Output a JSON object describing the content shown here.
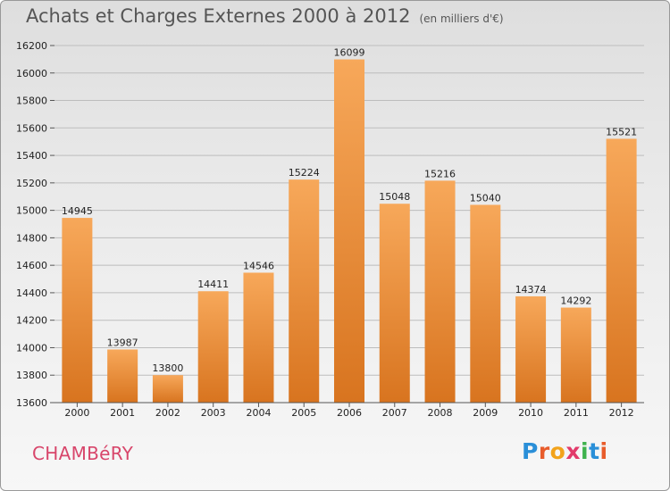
{
  "header": {
    "title": "Achats et Charges Externes 2000 à 2012",
    "unit": "(en milliers d'€)"
  },
  "footer": {
    "city": "CHAMBéRY",
    "logo_letters": [
      "P",
      "r",
      "o",
      "x",
      "i",
      "t",
      "i"
    ],
    "logo_colors": [
      "#2a8fd8",
      "#e85c2b",
      "#f2a31b",
      "#e23a6b",
      "#3fb24d",
      "#2a8fd8",
      "#e85c2b"
    ]
  },
  "colors": {
    "bar_light": "#f7a85a",
    "bar_dark": "#d8741f",
    "grid": "#bdbdbd",
    "axis": "#555555"
  },
  "chart_data": {
    "type": "bar",
    "title": "Achats et Charges Externes 2000 à 2012",
    "categories": [
      "2000",
      "2001",
      "2002",
      "2003",
      "2004",
      "2005",
      "2006",
      "2007",
      "2008",
      "2009",
      "2010",
      "2011",
      "2012"
    ],
    "values": [
      14945,
      13987,
      13800,
      14411,
      14546,
      15224,
      16099,
      15048,
      15216,
      15040,
      14374,
      14292,
      15521
    ],
    "ylim": [
      13600,
      16200
    ],
    "yticks": [
      13600,
      13800,
      14000,
      14200,
      14400,
      14600,
      14800,
      15000,
      15200,
      15400,
      15600,
      15800,
      16000,
      16200
    ],
    "xlabel": "",
    "ylabel": "",
    "grid": true,
    "legend": "none"
  }
}
